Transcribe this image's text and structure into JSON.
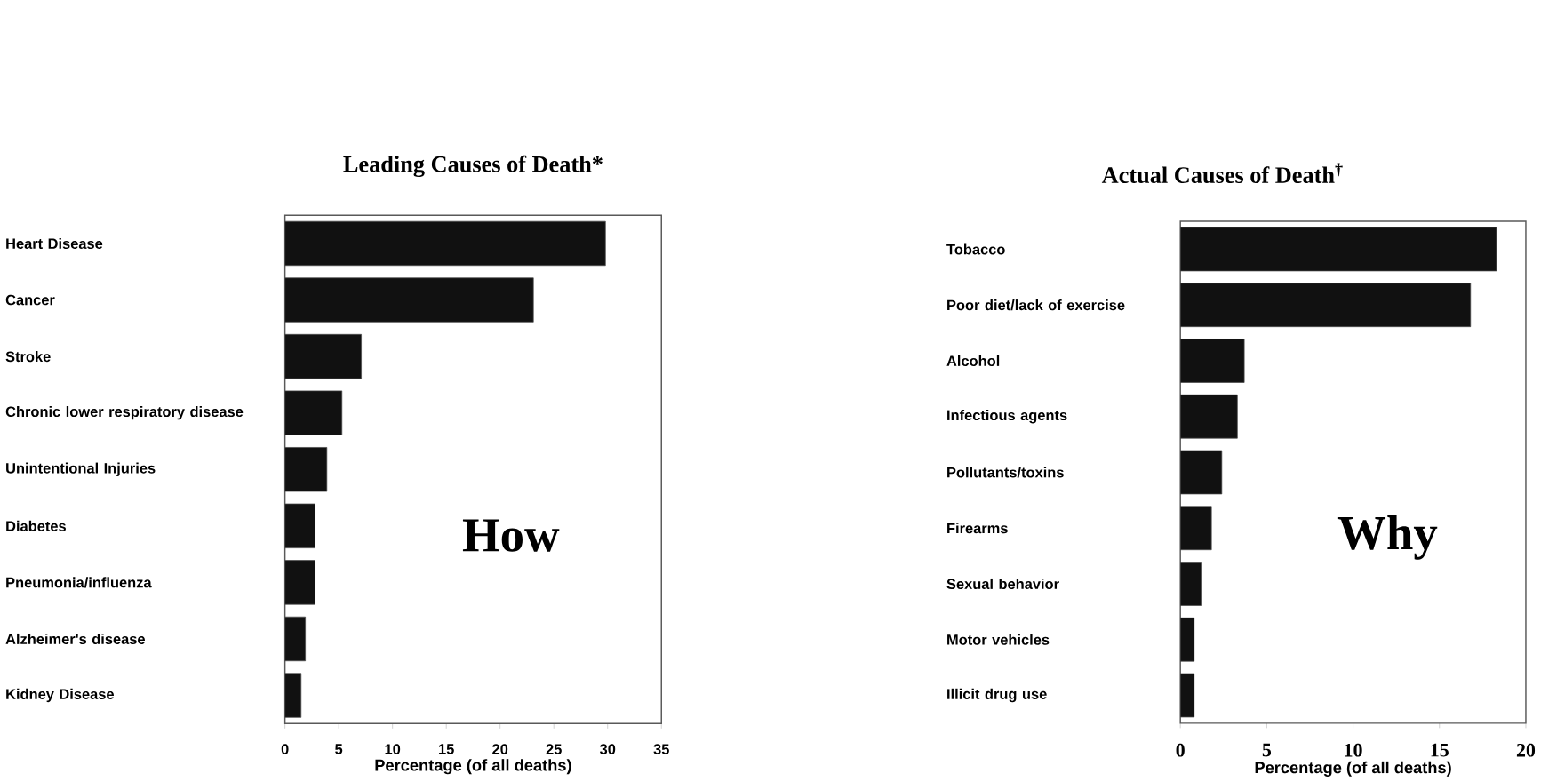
{
  "chart_data": [
    {
      "type": "bar",
      "orientation": "horizontal",
      "title": "Leading Causes of Death*",
      "xlabel": "Percentage (of all deaths)",
      "categories": [
        "Heart Disease",
        "Cancer",
        "Stroke",
        "Chronic lower respiratory disease",
        "Unintentional Injuries",
        "Diabetes",
        "Pneumonia/influenza",
        "Alzheimer's disease",
        "Kidney Disease"
      ],
      "values": [
        29.8,
        23.1,
        7.1,
        5.3,
        3.9,
        2.8,
        2.8,
        1.9,
        1.5
      ],
      "color": "#111111",
      "xlim": [
        0,
        35
      ],
      "xticks": [
        0,
        5,
        10,
        15,
        20,
        25,
        30,
        35
      ],
      "annotations": [
        "How"
      ]
    },
    {
      "type": "bar",
      "orientation": "horizontal",
      "title": "Actual Causes of Death$^{†}$",
      "xlabel": "Percentage (of all deaths)",
      "categories": [
        "Tobacco",
        "Poor diet/lack of exercise",
        "Alcohol",
        "Infectious agents",
        "Pollutants/toxins",
        "Firearms",
        "Sexual behavior",
        "Motor vehicles",
        "Illicit drug use"
      ],
      "values": [
        18.3,
        16.8,
        3.7,
        3.3,
        2.4,
        1.8,
        1.2,
        0.8,
        0.8
      ],
      "color": "#111111",
      "xlim": [
        0,
        20
      ],
      "xticks": [
        0,
        5,
        10,
        15,
        20
      ],
      "annotations": [
        "Why"
      ]
    }
  ]
}
